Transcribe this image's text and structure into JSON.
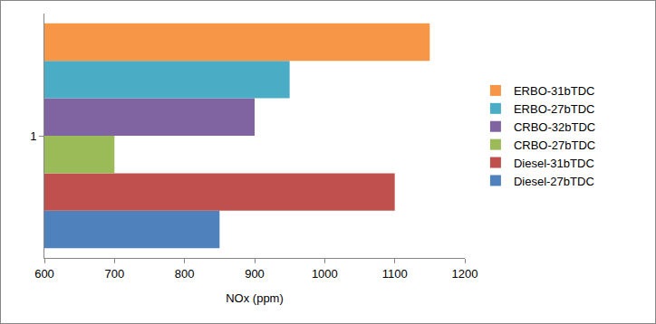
{
  "chart_data": {
    "type": "bar",
    "orientation": "horizontal",
    "categories": [
      "1"
    ],
    "series": [
      {
        "name": "Diesel-27bTDC",
        "color": "#4f81bd",
        "values": [
          850
        ]
      },
      {
        "name": "Diesel-31bTDC",
        "color": "#c0504d",
        "values": [
          1100
        ]
      },
      {
        "name": "CRBO-27bTDC",
        "color": "#9bbb59",
        "values": [
          700
        ]
      },
      {
        "name": "CRBO-32bTDC",
        "color": "#8064a2",
        "values": [
          900
        ]
      },
      {
        "name": "ERBO-27bTDC",
        "color": "#4bacc6",
        "values": [
          950
        ]
      },
      {
        "name": "ERBO-31bTDC",
        "color": "#f79646",
        "values": [
          1150
        ]
      }
    ],
    "x_label": "NOx (ppm)",
    "xlim": [
      600,
      1200
    ],
    "xticks": [
      600,
      700,
      800,
      900,
      1000,
      1100,
      1200
    ],
    "grid": false,
    "legend": "right"
  }
}
